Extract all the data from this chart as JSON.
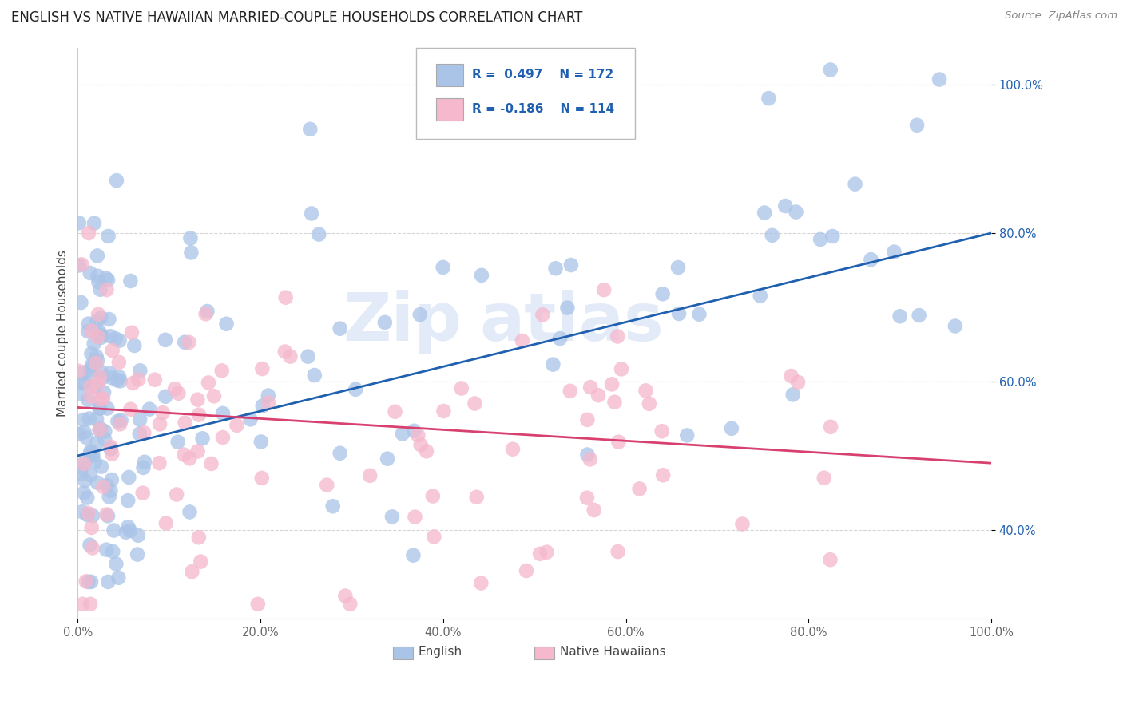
{
  "title": "ENGLISH VS NATIVE HAWAIIAN MARRIED-COUPLE HOUSEHOLDS CORRELATION CHART",
  "source": "Source: ZipAtlas.com",
  "ylabel": "Married-couple Households",
  "watermark_line1": "Zip",
  "watermark_line2": "atlas",
  "xlim": [
    0.0,
    1.0
  ],
  "ylim": [
    0.28,
    1.05
  ],
  "xticks": [
    0.0,
    0.2,
    0.4,
    0.6,
    0.8,
    1.0
  ],
  "yticks": [
    0.4,
    0.6,
    0.8,
    1.0
  ],
  "xticklabels": [
    "0.0%",
    "20.0%",
    "40.0%",
    "60.0%",
    "80.0%",
    "100.0%"
  ],
  "yticklabels": [
    "40.0%",
    "60.0%",
    "80.0%",
    "100.0%"
  ],
  "english_color": "#aac4e8",
  "native_color": "#f5b8cc",
  "english_line_color": "#2060b0",
  "native_line_color": "#d84070",
  "background_color": "#ffffff",
  "grid_color": "#cccccc",
  "legend_r1": "R =  0.497",
  "legend_n1": "N = 172",
  "legend_r2": "R = -0.186",
  "legend_n2": "N = 114",
  "figsize": [
    14.06,
    8.92
  ],
  "dpi": 100
}
